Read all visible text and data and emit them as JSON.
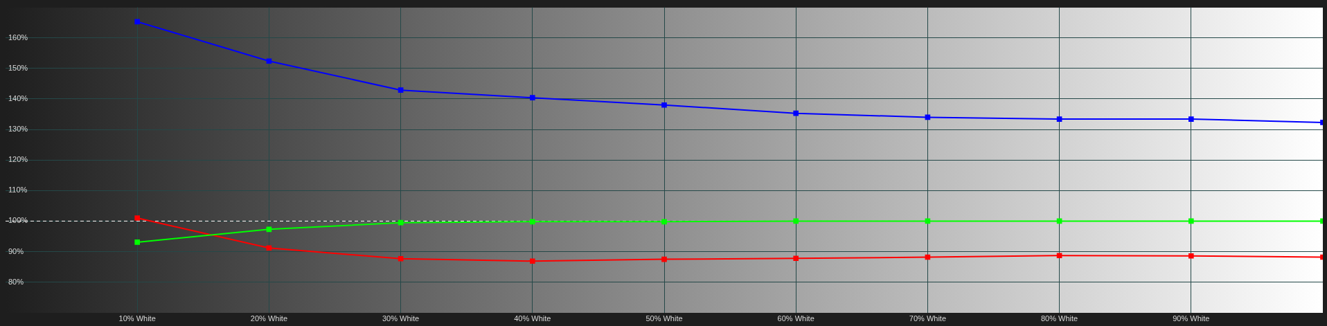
{
  "chart_data": {
    "type": "line",
    "x": [
      10,
      20,
      30,
      40,
      50,
      60,
      70,
      80,
      90,
      100
    ],
    "series": [
      {
        "color": "#0000ff",
        "values": [
          165.3,
          152.4,
          142.9,
          140.4,
          138.0,
          135.3,
          134.0,
          133.4,
          133.4,
          132.3
        ]
      },
      {
        "color": "#00ff00",
        "values": [
          93.1,
          97.3,
          99.5,
          99.8,
          99.8,
          100.0,
          100.0,
          100.0,
          100.0,
          100.0
        ]
      },
      {
        "color": "#ff0000",
        "values": [
          101.0,
          91.2,
          87.7,
          86.9,
          87.5,
          87.8,
          88.2,
          88.7,
          88.6,
          88.2
        ]
      }
    ],
    "xlim": [
      0,
      100
    ],
    "xticks": [
      {
        "value": 10,
        "label": "10% White"
      },
      {
        "value": 20,
        "label": "20% White"
      },
      {
        "value": 30,
        "label": "30% White"
      },
      {
        "value": 40,
        "label": "40% White"
      },
      {
        "value": 50,
        "label": "50% White"
      },
      {
        "value": 60,
        "label": "60% White"
      },
      {
        "value": 70,
        "label": "70% White"
      },
      {
        "value": 80,
        "label": "80% White"
      },
      {
        "value": 90,
        "label": "90% White"
      }
    ],
    "ylim": [
      70,
      170
    ],
    "yticks": [
      {
        "value": 80,
        "label": "80%"
      },
      {
        "value": 90,
        "label": "90%"
      },
      {
        "value": 100,
        "label": "100%"
      },
      {
        "value": 110,
        "label": "110%"
      },
      {
        "value": 120,
        "label": "120%"
      },
      {
        "value": 130,
        "label": "130%"
      },
      {
        "value": 140,
        "label": "140%"
      },
      {
        "value": 150,
        "label": "150%"
      },
      {
        "value": 160,
        "label": "160%"
      }
    ],
    "ref_lines": [
      {
        "axis": "y",
        "value": 100,
        "color": "#ffffff",
        "line_style": "dashed"
      }
    ],
    "grid": true,
    "legend": false,
    "marker": "square",
    "line_style": "solid"
  }
}
